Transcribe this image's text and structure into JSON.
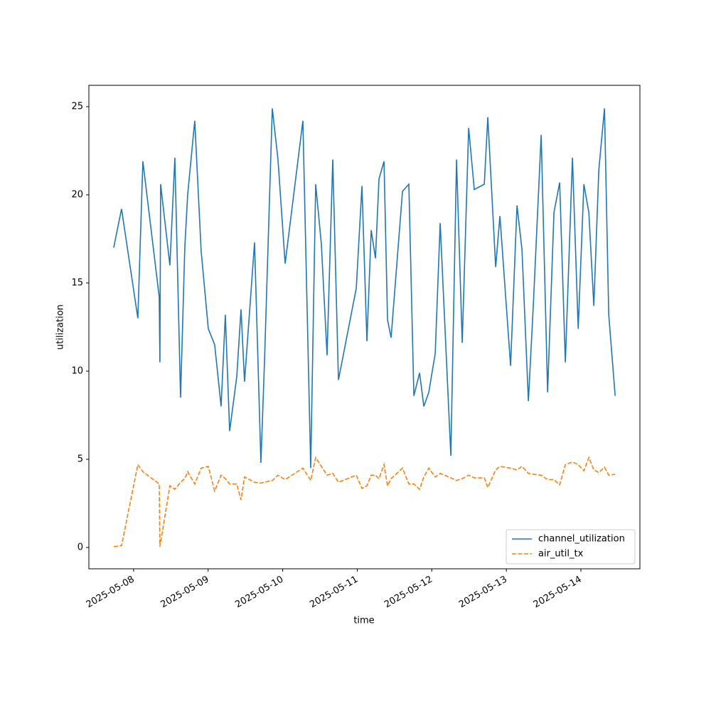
{
  "chart_data": {
    "type": "line",
    "x_label": "time",
    "y_label": "utilization",
    "x": [
      "2025-05-07T17:35",
      "2025-05-07T20:07",
      "2025-05-08T01:22",
      "2025-05-08T02:59",
      "2025-05-08T08:15",
      "2025-05-08T08:28",
      "2025-05-08T08:42",
      "2025-05-08T11:41",
      "2025-05-08T13:17",
      "2025-05-08T15:07",
      "2025-05-08T16:29",
      "2025-05-08T17:24",
      "2025-05-08T19:41",
      "2025-05-08T21:45",
      "2025-05-09T00:03",
      "2025-05-09T02:06",
      "2025-05-09T04:10",
      "2025-05-09T05:32",
      "2025-05-09T06:55",
      "2025-05-09T09:13",
      "2025-05-09T10:35",
      "2025-05-09T11:43",
      "2025-05-09T14:56",
      "2025-05-09T16:59",
      "2025-05-09T18:08",
      "2025-05-09T20:39",
      "2025-05-09T22:29",
      "2025-05-10T00:47",
      "2025-05-10T06:30",
      "2025-05-10T09:01",
      "2025-05-10T10:37",
      "2025-05-10T12:27",
      "2025-05-10T14:17",
      "2025-05-10T16:07",
      "2025-05-10T17:57",
      "2025-05-10T23:41",
      "2025-05-11T01:31",
      "2025-05-11T03:07",
      "2025-05-11T04:29",
      "2025-05-11T05:52",
      "2025-05-11T07:00",
      "2025-05-11T08:37",
      "2025-05-11T09:45",
      "2025-05-11T10:54",
      "2025-05-11T14:34",
      "2025-05-11T16:37",
      "2025-05-11T18:14",
      "2025-05-11T20:04",
      "2025-05-11T21:26",
      "2025-05-11T23:02",
      "2025-05-12T01:06",
      "2025-05-12T02:42",
      "2025-05-12T06:08",
      "2025-05-12T07:58",
      "2025-05-12T09:48",
      "2025-05-12T11:52",
      "2025-05-12T13:41",
      "2025-05-12T16:54",
      "2025-05-12T18:02",
      "2025-05-12T20:34",
      "2025-05-12T21:56",
      "2025-05-13T01:22",
      "2025-05-13T03:26",
      "2025-05-13T05:02",
      "2025-05-13T07:06",
      "2025-05-13T08:42",
      "2025-05-13T11:13",
      "2025-05-13T13:17",
      "2025-05-13T15:20",
      "2025-05-13T17:10",
      "2025-05-13T19:00",
      "2025-05-13T21:17",
      "2025-05-13T23:08",
      "2025-05-14T00:58",
      "2025-05-14T02:34",
      "2025-05-14T04:10",
      "2025-05-14T05:46",
      "2025-05-14T07:36",
      "2025-05-14T08:58",
      "2025-05-14T11:02"
    ],
    "series": [
      {
        "name": "channel_utilization",
        "color": "#1f77b4",
        "dash": "solid",
        "values": [
          17.0,
          19.2,
          13.0,
          21.9,
          14.2,
          10.5,
          20.6,
          16.0,
          22.1,
          8.5,
          17.0,
          20.0,
          24.2,
          16.8,
          12.4,
          11.5,
          8.0,
          13.2,
          6.6,
          9.7,
          13.5,
          9.4,
          17.3,
          4.8,
          10.5,
          24.9,
          22.0,
          16.1,
          24.2,
          4.5,
          20.6,
          17.2,
          10.9,
          22.0,
          9.5,
          14.7,
          20.5,
          11.7,
          18.0,
          16.4,
          20.9,
          21.9,
          12.9,
          11.9,
          20.2,
          20.6,
          8.6,
          9.9,
          8.0,
          8.8,
          11.0,
          18.4,
          5.2,
          22.0,
          11.6,
          23.8,
          20.3,
          20.6,
          24.4,
          15.9,
          18.8,
          10.3,
          19.4,
          16.9,
          8.3,
          13.8,
          23.4,
          8.8,
          19.0,
          20.7,
          10.5,
          22.1,
          12.4,
          20.6,
          19.0,
          13.7,
          21.4,
          24.9,
          13.2,
          8.6
        ]
      },
      {
        "name": "air_util_tx",
        "color": "#ff7f0e",
        "dash": "dashed",
        "values": [
          0.05,
          0.1,
          4.7,
          4.3,
          3.6,
          0.05,
          0.3,
          3.5,
          3.3,
          3.7,
          3.9,
          4.3,
          3.6,
          4.5,
          4.6,
          3.2,
          4.1,
          3.9,
          3.6,
          3.6,
          2.7,
          4.0,
          3.7,
          3.65,
          3.7,
          3.8,
          4.1,
          3.85,
          4.5,
          3.8,
          5.1,
          4.6,
          4.1,
          4.2,
          3.7,
          4.1,
          3.35,
          3.5,
          4.1,
          4.1,
          3.9,
          4.7,
          3.5,
          3.9,
          4.5,
          3.6,
          3.6,
          3.3,
          4.0,
          4.5,
          4.0,
          4.2,
          3.95,
          3.8,
          3.9,
          4.1,
          3.95,
          3.95,
          3.4,
          4.4,
          4.6,
          4.5,
          4.4,
          4.6,
          4.2,
          4.15,
          4.1,
          3.85,
          3.85,
          3.55,
          4.7,
          4.85,
          4.7,
          4.35,
          5.1,
          4.4,
          4.25,
          4.55,
          4.1,
          4.15
        ]
      }
    ],
    "xlim": [
      "2025-05-07T09:36",
      "2025-05-14T19:00"
    ],
    "xticks": [
      "2025-05-08",
      "2025-05-09",
      "2025-05-10",
      "2025-05-11",
      "2025-05-12",
      "2025-05-13",
      "2025-05-14"
    ],
    "ylim": [
      -1.21,
      26.21
    ],
    "yticks": [
      0,
      5,
      10,
      15,
      20,
      25
    ],
    "grid": false,
    "legend": "lower right"
  }
}
